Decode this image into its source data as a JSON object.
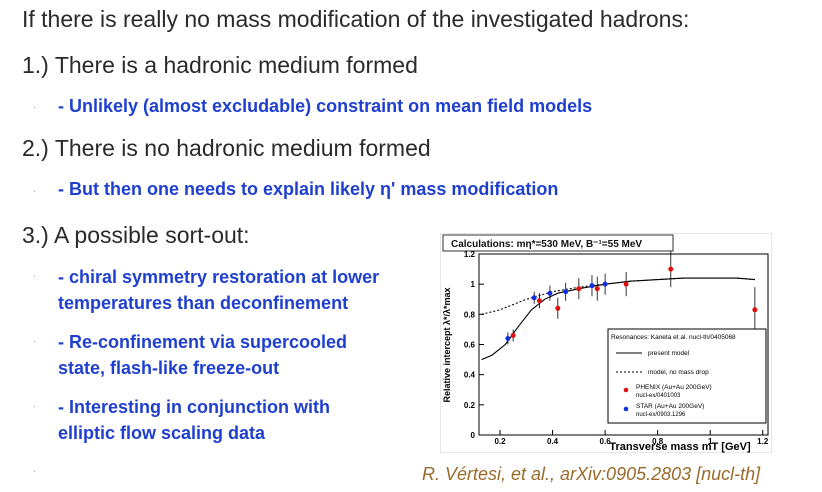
{
  "heading": "If there is really no mass modification of the investigated hadrons:",
  "points": [
    {
      "label": "1.) There is a hadronic medium formed"
    },
    {
      "label": "2.) There is no hadronic medium formed"
    },
    {
      "label": "3.) A possible sort-out:"
    }
  ],
  "bullets": [
    "- Unlikely (almost excludable) constraint on mean field models",
    "- But then one needs to explain likely η' mass modification",
    "- chiral symmetry restoration at lower",
    "temperatures than deconfinement",
    "- Re-confinement via supercooled",
    "state, flash-like freeze-out",
    "- Interesting in conjunction with",
    "elliptic flow scaling data"
  ],
  "citation": "R. Vértesi, et al., arXiv:0905.2803 [nucl-th]",
  "chart_data": {
    "type": "scatter",
    "title": "Calculations: mη*=530 MeV, B⁻¹=55 MeV",
    "xlabel": "Transverse mass   mT [GeV]",
    "ylabel": "Relative intercept  λ*/λ*max",
    "xlim": [
      0.12,
      1.22
    ],
    "ylim": [
      0,
      1.2
    ],
    "x_ticks": [
      "0.2",
      "0.4",
      "0.6",
      "0.8",
      "1",
      "1.2"
    ],
    "y_ticks": [
      "0",
      "0.2",
      "0.4",
      "0.6",
      "0.8",
      "1",
      "1.2"
    ],
    "legend_title": "Resonances: Kaneta et al. nucl-th/0405068",
    "legend_entries": [
      {
        "label": "present model",
        "style": "solid"
      },
      {
        "label": "model, no mass drop",
        "style": "dotted"
      },
      {
        "label": "PHENIX (Au+Au 200GeV)",
        "sub": "nucl-ex/0401003",
        "color": "#e01010"
      },
      {
        "label": "STAR (Au+Au 200GeV)",
        "sub": "nucl-ex/0903.1296",
        "color": "#1030e0"
      }
    ],
    "series": [
      {
        "name": "present model",
        "style": "solid",
        "x": [
          0.13,
          0.17,
          0.22,
          0.27,
          0.32,
          0.37,
          0.42,
          0.5,
          0.6,
          0.7,
          0.8,
          0.9,
          1.0,
          1.1,
          1.17
        ],
        "y": [
          0.5,
          0.53,
          0.6,
          0.72,
          0.83,
          0.9,
          0.94,
          0.97,
          1.0,
          1.02,
          1.03,
          1.04,
          1.04,
          1.04,
          1.03
        ]
      },
      {
        "name": "model, no mass drop",
        "style": "dotted",
        "x": [
          0.13,
          0.2,
          0.3,
          0.4,
          0.5,
          0.6,
          0.7,
          0.8,
          0.9,
          1.0,
          1.1,
          1.17
        ],
        "y": [
          0.8,
          0.83,
          0.9,
          0.95,
          0.98,
          1.0,
          1.02,
          1.03,
          1.04,
          1.04,
          1.04,
          1.03
        ]
      },
      {
        "name": "PHENIX (Au+Au 200GeV)",
        "color": "#e01010",
        "points": [
          [
            0.25,
            0.66,
            0.04
          ],
          [
            0.35,
            0.89,
            0.05
          ],
          [
            0.42,
            0.84,
            0.07
          ],
          [
            0.5,
            0.97,
            0.07
          ],
          [
            0.57,
            0.97,
            0.08
          ],
          [
            0.68,
            1.0,
            0.08
          ],
          [
            0.85,
            1.1,
            0.12
          ],
          [
            1.17,
            0.83,
            0.15
          ]
        ]
      },
      {
        "name": "STAR (Au+Au 200GeV)",
        "color": "#1030e0",
        "points": [
          [
            0.23,
            0.64,
            0.04
          ],
          [
            0.33,
            0.91,
            0.04
          ],
          [
            0.39,
            0.94,
            0.05
          ],
          [
            0.45,
            0.95,
            0.06
          ],
          [
            0.55,
            0.99,
            0.07
          ],
          [
            0.6,
            1.0,
            0.07
          ]
        ]
      }
    ]
  }
}
